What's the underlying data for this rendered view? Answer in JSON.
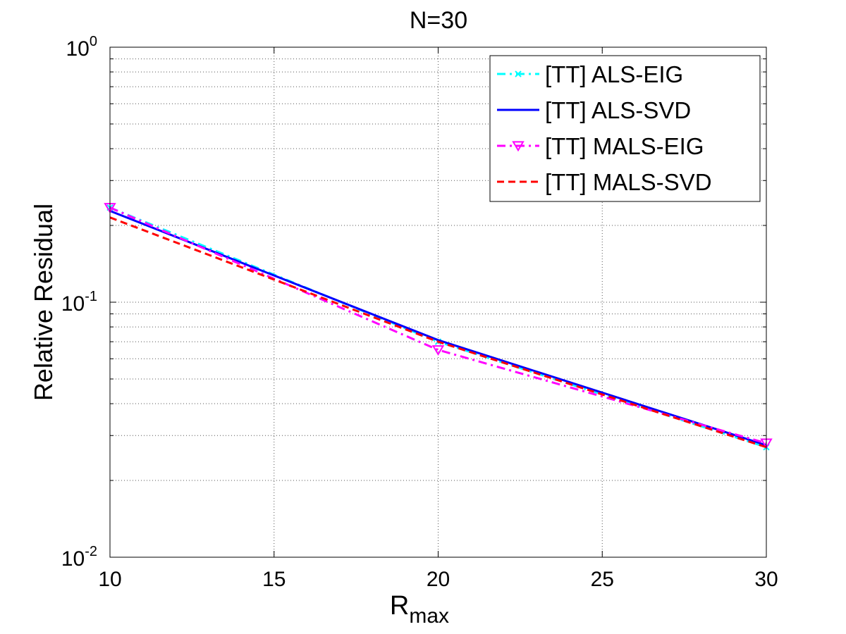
{
  "chart_data": {
    "type": "line",
    "title": "N=30",
    "xlabel_main": "R",
    "xlabel_sub": "max",
    "ylabel": "Relative Residual",
    "yscale": "log",
    "xlim": [
      10,
      30
    ],
    "ylim": [
      0.01,
      1
    ],
    "grid": true,
    "x_ticks": [
      "10",
      "15",
      "20",
      "25",
      "30"
    ],
    "y_ticks": [
      {
        "base": "10",
        "exp": "-2"
      },
      {
        "base": "10",
        "exp": "-1"
      },
      {
        "base": "10",
        "exp": "0"
      }
    ],
    "legend_position": "top-right",
    "series": [
      {
        "name": "[TT] ALS-EIG",
        "color": "#00ffff",
        "dash": "12,6,3,6",
        "width": 3,
        "marker": "x",
        "x": [
          10,
          20,
          30
        ],
        "values": [
          0.235,
          0.07,
          0.027
        ]
      },
      {
        "name": "[TT] ALS-SVD",
        "color": "#0000ff",
        "dash": "",
        "width": 3,
        "marker": "none",
        "x": [
          10,
          20,
          30
        ],
        "values": [
          0.228,
          0.071,
          0.0275
        ]
      },
      {
        "name": "[TT] MALS-EIG",
        "color": "#ff00ff",
        "dash": "12,6,3,6",
        "width": 3,
        "marker": "triangle-down",
        "x": [
          10,
          20,
          30
        ],
        "values": [
          0.235,
          0.065,
          0.028
        ]
      },
      {
        "name": "[TT] MALS-SVD",
        "color": "#ff0000",
        "dash": "10,6",
        "width": 3,
        "marker": "none",
        "x": [
          10,
          20,
          30
        ],
        "values": [
          0.215,
          0.07,
          0.027
        ]
      }
    ]
  }
}
